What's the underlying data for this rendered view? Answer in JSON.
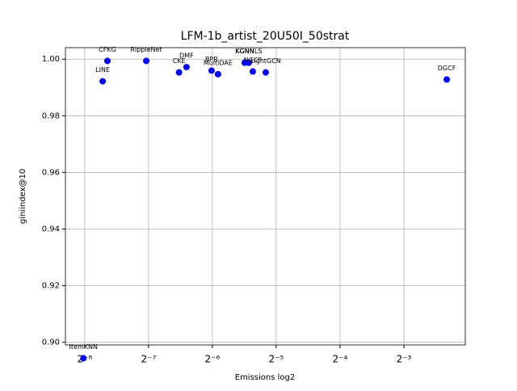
{
  "chart_data": {
    "type": "scatter",
    "title": "LFM-1b_artist_20U50I_50strat",
    "x_label": "Emissions log2",
    "y_label": "giniindex@10",
    "xscale": "log2",
    "grid": true,
    "color": "#0000ff",
    "labels": [
      "ItemKNN",
      "LINE",
      "CFKG",
      "RippleNet",
      "CKE",
      "DMF",
      "BPR",
      "MultiDAE",
      "KGNN",
      "KGNNLS",
      "NGCF",
      "LightGCN",
      "DGCF"
    ],
    "x": [
      0.003852,
      0.004748,
      0.005,
      0.00762,
      0.01088,
      0.0118,
      0.01549,
      0.01661,
      0.02219,
      0.0232,
      0.02424,
      0.02789,
      0.1991
    ],
    "values": [
      0.89438,
      0.99219,
      0.99938,
      0.99938,
      0.99531,
      0.99719,
      0.99594,
      0.99469,
      0.99875,
      0.99875,
      0.99563,
      0.99531,
      0.99281
    ],
    "xlim": [
      0.003169,
      0.2435
    ],
    "ylim": [
      0.89906,
      1.00406
    ],
    "xticks": [
      {
        "value": 0.00390625,
        "label": "2⁻⁸"
      },
      {
        "value": 0.0078125,
        "label": "2⁻⁷"
      },
      {
        "value": 0.015625,
        "label": "2⁻⁶"
      },
      {
        "value": 0.03125,
        "label": "2⁻⁵"
      },
      {
        "value": 0.0625,
        "label": "2⁻⁴"
      },
      {
        "value": 0.125,
        "label": "2⁻³"
      }
    ],
    "yticks": [
      {
        "value": 0.9,
        "label": "0.90"
      },
      {
        "value": 0.92,
        "label": "0.92"
      },
      {
        "value": 0.94,
        "label": "0.94"
      },
      {
        "value": 0.96,
        "label": "0.96"
      },
      {
        "value": 0.98,
        "label": "0.98"
      },
      {
        "value": 1,
        "label": "1.00"
      }
    ]
  }
}
